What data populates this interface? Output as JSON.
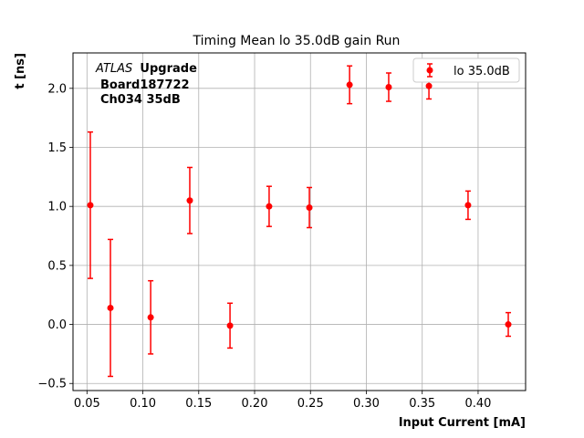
{
  "chart_data": {
    "type": "scatter",
    "title": "Timing Mean lo 35.0dB gain Run",
    "xlabel": "Input Current [mA]",
    "ylabel": "t [ns]",
    "xlim": [
      0.0375,
      0.4425
    ],
    "ylim": [
      -0.56,
      2.3
    ],
    "xticks": [
      "0.05",
      "0.10",
      "0.15",
      "0.20",
      "0.25",
      "0.30",
      "0.35",
      "0.40"
    ],
    "yticks": [
      "−0.5",
      "0.0",
      "0.5",
      "1.0",
      "1.5",
      "2.0"
    ],
    "grid": true,
    "legend_position": "upper-right",
    "annotation": {
      "atlas": "ATLAS",
      "upgrade": "Upgrade",
      "board": "Board187722",
      "channel": "Ch034 35dB"
    },
    "series": [
      {
        "name": "lo 35.0dB",
        "color": "#ff0000",
        "x": [
          0.053,
          0.071,
          0.107,
          0.142,
          0.178,
          0.213,
          0.249,
          0.285,
          0.32,
          0.356,
          0.391,
          0.427
        ],
        "y": [
          1.01,
          0.14,
          0.06,
          1.05,
          -0.01,
          1.0,
          0.99,
          2.03,
          2.01,
          2.02,
          1.01,
          0.0
        ],
        "yerr": [
          0.62,
          0.58,
          0.31,
          0.28,
          0.19,
          0.17,
          0.17,
          0.16,
          0.12,
          0.11,
          0.12,
          0.1
        ]
      }
    ]
  }
}
